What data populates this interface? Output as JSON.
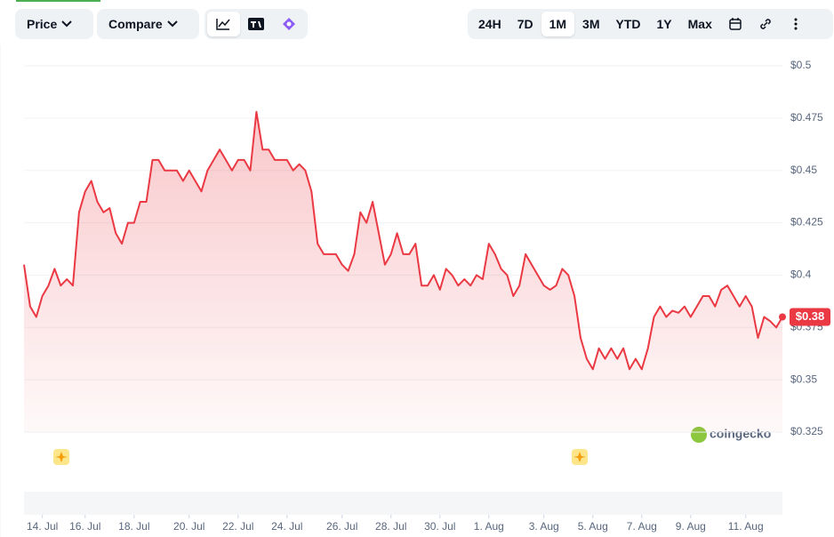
{
  "toolbar": {
    "price": "Price",
    "compare": "Compare",
    "ranges": [
      "24H",
      "7D",
      "1M",
      "3M",
      "YTD",
      "1Y",
      "Max"
    ],
    "active_range": "1M"
  },
  "watermark": "coingecko",
  "chart_data": {
    "type": "line",
    "color": "#ea3943",
    "grid": true,
    "ylim": [
      0.325,
      0.5
    ],
    "yticks": [
      {
        "value": 0.325,
        "label": "$0.325"
      },
      {
        "value": 0.35,
        "label": "$0.35"
      },
      {
        "value": 0.375,
        "label": "$0.375"
      },
      {
        "value": 0.4,
        "label": "$0.4"
      },
      {
        "value": 0.425,
        "label": "$0.425"
      },
      {
        "value": 0.45,
        "label": "$0.45"
      },
      {
        "value": 0.475,
        "label": "$0.475"
      },
      {
        "value": 0.5,
        "label": "$0.5"
      }
    ],
    "categories": [
      null,
      null,
      null,
      "14. Jul",
      null,
      null,
      null,
      null,
      null,
      null,
      "16. Jul",
      null,
      null,
      null,
      null,
      null,
      null,
      null,
      "18. Jul",
      null,
      null,
      null,
      null,
      null,
      null,
      null,
      null,
      "20. Jul",
      null,
      null,
      null,
      null,
      null,
      null,
      null,
      "22. Jul",
      null,
      null,
      null,
      null,
      null,
      null,
      null,
      "24. Jul",
      null,
      null,
      null,
      null,
      null,
      null,
      null,
      null,
      "26. Jul",
      null,
      null,
      null,
      null,
      null,
      null,
      null,
      "28. Jul",
      null,
      null,
      null,
      null,
      null,
      null,
      null,
      "30. Jul",
      null,
      null,
      null,
      null,
      null,
      null,
      null,
      "1. Aug",
      null,
      null,
      null,
      null,
      null,
      null,
      null,
      null,
      "3. Aug",
      null,
      null,
      null,
      null,
      null,
      null,
      null,
      "5. Aug",
      null,
      null,
      null,
      null,
      null,
      null,
      null,
      "7. Aug",
      null,
      null,
      null,
      null,
      null,
      null,
      null,
      "9. Aug",
      null,
      null,
      null,
      null,
      null,
      null,
      null,
      null,
      "11. Aug",
      null,
      null,
      null,
      null,
      null,
      null
    ],
    "values": [
      0.405,
      0.385,
      0.38,
      0.39,
      0.395,
      0.403,
      0.395,
      0.398,
      0.395,
      0.43,
      0.44,
      0.445,
      0.435,
      0.43,
      0.432,
      0.42,
      0.415,
      0.425,
      0.425,
      0.435,
      0.435,
      0.455,
      0.455,
      0.45,
      0.45,
      0.45,
      0.445,
      0.45,
      0.445,
      0.44,
      0.45,
      0.455,
      0.46,
      0.455,
      0.45,
      0.455,
      0.455,
      0.45,
      0.478,
      0.46,
      0.46,
      0.455,
      0.455,
      0.455,
      0.45,
      0.453,
      0.45,
      0.44,
      0.415,
      0.41,
      0.41,
      0.41,
      0.405,
      0.402,
      0.41,
      0.43,
      0.425,
      0.435,
      0.42,
      0.405,
      0.41,
      0.42,
      0.41,
      0.41,
      0.415,
      0.395,
      0.395,
      0.4,
      0.393,
      0.403,
      0.4,
      0.395,
      0.398,
      0.395,
      0.4,
      0.398,
      0.415,
      0.41,
      0.403,
      0.4,
      0.39,
      0.395,
      0.41,
      0.405,
      0.4,
      0.395,
      0.393,
      0.395,
      0.403,
      0.4,
      0.39,
      0.37,
      0.36,
      0.355,
      0.365,
      0.36,
      0.365,
      0.36,
      0.365,
      0.355,
      0.36,
      0.355,
      0.365,
      0.38,
      0.385,
      0.38,
      0.383,
      0.382,
      0.385,
      0.38,
      0.385,
      0.39,
      0.39,
      0.385,
      0.393,
      0.395,
      0.39,
      0.385,
      0.39,
      0.385,
      0.37,
      0.38,
      0.378,
      0.375,
      0.38
    ],
    "last_label": "$0.38"
  }
}
